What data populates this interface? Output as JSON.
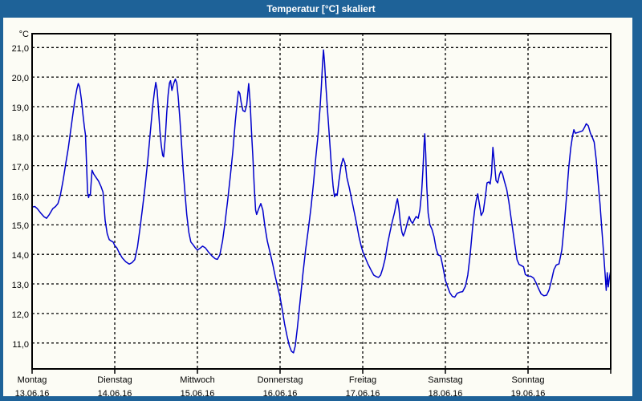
{
  "window": {
    "title": "Temperatur [°C] skaliert",
    "frame_color": "#1E6298",
    "content_background": "#FCFCF5"
  },
  "chart_data": {
    "type": "line",
    "title": "Temperatur [°C] skaliert",
    "ylabel": "°C",
    "xlabel": "",
    "grid": "dashed-black-on-pale-background",
    "legend": "none",
    "y_axis": {
      "max": 21,
      "min": 11,
      "tick_step": 1,
      "tick_labels": [
        "21,0",
        "20,0",
        "19,0",
        "18,0",
        "17,0",
        "16,0",
        "15,0",
        "14,0",
        "13,0",
        "12,0",
        "11,0"
      ]
    },
    "x_axis": {
      "unit": "hours from Monday 00:00",
      "range_hours": [
        0,
        168
      ],
      "days": [
        {
          "weekday": "Montag",
          "date": "13.06.16"
        },
        {
          "weekday": "Dienstag",
          "date": "14.06.16"
        },
        {
          "weekday": "Mittwoch",
          "date": "15.06.16"
        },
        {
          "weekday": "Donnerstag",
          "date": "16.06.16"
        },
        {
          "weekday": "Freitag",
          "date": "17.06.16"
        },
        {
          "weekday": "Samstag",
          "date": "18.06.16"
        },
        {
          "weekday": "Sonntag",
          "date": "19.06.16"
        }
      ]
    },
    "series": [
      {
        "name": "Temperatur",
        "color": "#0000CC",
        "points": [
          [
            0,
            15.6
          ],
          [
            0.8,
            15.62
          ],
          [
            1.5,
            15.55
          ],
          [
            2.5,
            15.4
          ],
          [
            3.5,
            15.27
          ],
          [
            4.2,
            15.22
          ],
          [
            5,
            15.35
          ],
          [
            6,
            15.55
          ],
          [
            6.8,
            15.62
          ],
          [
            7.5,
            15.72
          ],
          [
            8.2,
            16.0
          ],
          [
            9,
            16.5
          ],
          [
            9.8,
            17.1
          ],
          [
            10.5,
            17.6
          ],
          [
            11.2,
            18.2
          ],
          [
            11.8,
            18.7
          ],
          [
            12.4,
            19.2
          ],
          [
            13,
            19.6
          ],
          [
            13.4,
            19.78
          ],
          [
            13.8,
            19.68
          ],
          [
            14.3,
            19.25
          ],
          [
            14.8,
            18.7
          ],
          [
            15.2,
            18.3
          ],
          [
            15.5,
            18.05
          ],
          [
            15.8,
            17.1
          ],
          [
            16.1,
            16.1
          ],
          [
            16.4,
            15.92
          ],
          [
            16.6,
            16.02
          ],
          [
            16.9,
            16.0
          ],
          [
            17.4,
            16.85
          ],
          [
            17.9,
            16.72
          ],
          [
            18.6,
            16.6
          ],
          [
            19.3,
            16.48
          ],
          [
            20,
            16.3
          ],
          [
            20.6,
            16.1
          ],
          [
            21.2,
            15.15
          ],
          [
            21.8,
            14.7
          ],
          [
            22.4,
            14.5
          ],
          [
            23,
            14.45
          ],
          [
            23.5,
            14.42
          ],
          [
            24,
            14.3
          ],
          [
            24.6,
            14.22
          ],
          [
            25.3,
            14.05
          ],
          [
            26.2,
            13.88
          ],
          [
            27.2,
            13.75
          ],
          [
            28.2,
            13.67
          ],
          [
            29,
            13.72
          ],
          [
            29.8,
            13.82
          ],
          [
            30.6,
            14.25
          ],
          [
            31.3,
            14.85
          ],
          [
            32,
            15.5
          ],
          [
            32.8,
            16.3
          ],
          [
            33.6,
            17.2
          ],
          [
            34.3,
            18.1
          ],
          [
            35,
            19.0
          ],
          [
            35.5,
            19.5
          ],
          [
            35.9,
            19.82
          ],
          [
            36.3,
            19.55
          ],
          [
            36.7,
            18.9
          ],
          [
            37.1,
            18.2
          ],
          [
            37.5,
            17.7
          ],
          [
            37.9,
            17.35
          ],
          [
            38.2,
            17.3
          ],
          [
            38.7,
            18.0
          ],
          [
            39.1,
            18.8
          ],
          [
            39.5,
            19.4
          ],
          [
            39.9,
            19.8
          ],
          [
            40.2,
            19.88
          ],
          [
            40.6,
            19.55
          ],
          [
            41.1,
            19.78
          ],
          [
            41.6,
            19.93
          ],
          [
            42,
            19.8
          ],
          [
            42.4,
            19.35
          ],
          [
            42.9,
            18.6
          ],
          [
            43.4,
            17.7
          ],
          [
            43.9,
            16.8
          ],
          [
            44.4,
            16.05
          ],
          [
            44.9,
            15.35
          ],
          [
            45.5,
            14.75
          ],
          [
            46.1,
            14.42
          ],
          [
            46.8,
            14.32
          ],
          [
            47.4,
            14.22
          ],
          [
            48,
            14.15
          ],
          [
            48.7,
            14.2
          ],
          [
            49.5,
            14.28
          ],
          [
            50.3,
            14.22
          ],
          [
            51.2,
            14.08
          ],
          [
            52.2,
            13.95
          ],
          [
            53.2,
            13.85
          ],
          [
            53.8,
            13.83
          ],
          [
            54.5,
            13.98
          ],
          [
            55.3,
            14.45
          ],
          [
            56,
            15.05
          ],
          [
            56.8,
            15.85
          ],
          [
            57.6,
            16.7
          ],
          [
            58.3,
            17.5
          ],
          [
            59,
            18.5
          ],
          [
            59.5,
            19.1
          ],
          [
            59.9,
            19.52
          ],
          [
            60.3,
            19.45
          ],
          [
            60.7,
            19.15
          ],
          [
            61.2,
            18.87
          ],
          [
            61.8,
            18.83
          ],
          [
            62.3,
            19.05
          ],
          [
            62.9,
            19.78
          ],
          [
            63.3,
            19.15
          ],
          [
            63.7,
            18.15
          ],
          [
            64.1,
            17.3
          ],
          [
            64.5,
            16.3
          ],
          [
            64.9,
            15.5
          ],
          [
            65.2,
            15.35
          ],
          [
            65.8,
            15.55
          ],
          [
            66.4,
            15.72
          ],
          [
            67,
            15.5
          ],
          [
            67.6,
            14.95
          ],
          [
            68.3,
            14.45
          ],
          [
            69.1,
            14.05
          ],
          [
            69.9,
            13.65
          ],
          [
            70.6,
            13.25
          ],
          [
            71.3,
            12.9
          ],
          [
            72,
            12.55
          ],
          [
            72.6,
            12.15
          ],
          [
            73.3,
            11.65
          ],
          [
            74,
            11.25
          ],
          [
            74.7,
            10.9
          ],
          [
            75.3,
            10.72
          ],
          [
            75.9,
            10.67
          ],
          [
            76.4,
            10.9
          ],
          [
            77,
            11.5
          ],
          [
            77.8,
            12.4
          ],
          [
            78.6,
            13.3
          ],
          [
            79.4,
            14.15
          ],
          [
            80.2,
            14.85
          ],
          [
            81,
            15.6
          ],
          [
            81.7,
            16.4
          ],
          [
            82.4,
            17.3
          ],
          [
            83,
            18.0
          ],
          [
            83.6,
            18.95
          ],
          [
            84,
            19.7
          ],
          [
            84.3,
            20.4
          ],
          [
            84.6,
            20.92
          ],
          [
            84.9,
            20.5
          ],
          [
            85.3,
            19.7
          ],
          [
            85.8,
            18.85
          ],
          [
            86.3,
            18.0
          ],
          [
            86.9,
            17.0
          ],
          [
            87.4,
            16.3
          ],
          [
            87.8,
            15.95
          ],
          [
            88.2,
            16.05
          ],
          [
            88.6,
            16.0
          ],
          [
            89.1,
            16.5
          ],
          [
            89.7,
            17.0
          ],
          [
            90.3,
            17.25
          ],
          [
            90.8,
            17.1
          ],
          [
            91.4,
            16.6
          ],
          [
            92.1,
            16.25
          ],
          [
            92.8,
            15.85
          ],
          [
            93.5,
            15.45
          ],
          [
            94.2,
            15.05
          ],
          [
            94.9,
            14.6
          ],
          [
            95.5,
            14.3
          ],
          [
            96,
            14.1
          ],
          [
            96.7,
            13.9
          ],
          [
            97.5,
            13.68
          ],
          [
            98.4,
            13.47
          ],
          [
            99.2,
            13.3
          ],
          [
            99.9,
            13.25
          ],
          [
            100.6,
            13.22
          ],
          [
            101.2,
            13.3
          ],
          [
            101.8,
            13.52
          ],
          [
            102.5,
            13.85
          ],
          [
            103.2,
            14.35
          ],
          [
            103.9,
            14.75
          ],
          [
            104.6,
            15.12
          ],
          [
            105.2,
            15.4
          ],
          [
            105.7,
            15.7
          ],
          [
            106.1,
            15.88
          ],
          [
            106.5,
            15.55
          ],
          [
            106.9,
            15.1
          ],
          [
            107.4,
            14.75
          ],
          [
            107.8,
            14.62
          ],
          [
            108.3,
            14.78
          ],
          [
            108.9,
            15.05
          ],
          [
            109.5,
            15.28
          ],
          [
            110,
            15.12
          ],
          [
            110.5,
            15.05
          ],
          [
            111,
            15.18
          ],
          [
            111.5,
            15.28
          ],
          [
            112.1,
            15.22
          ],
          [
            112.6,
            15.5
          ],
          [
            113.1,
            16.1
          ],
          [
            113.5,
            16.9
          ],
          [
            113.8,
            17.7
          ],
          [
            114,
            18.08
          ],
          [
            114.3,
            17.4
          ],
          [
            114.6,
            16.3
          ],
          [
            115,
            15.4
          ],
          [
            115.5,
            15.0
          ],
          [
            116.1,
            14.85
          ],
          [
            116.7,
            14.6
          ],
          [
            117.3,
            14.2
          ],
          [
            117.9,
            13.98
          ],
          [
            118.6,
            13.95
          ],
          [
            119.2,
            13.62
          ],
          [
            119.7,
            13.32
          ],
          [
            120,
            13.12
          ],
          [
            120.6,
            12.92
          ],
          [
            121.3,
            12.7
          ],
          [
            122,
            12.58
          ],
          [
            122.7,
            12.55
          ],
          [
            123.4,
            12.68
          ],
          [
            124.2,
            12.72
          ],
          [
            125,
            12.74
          ],
          [
            125.8,
            12.92
          ],
          [
            126.5,
            13.3
          ],
          [
            127.2,
            14.0
          ],
          [
            127.9,
            14.9
          ],
          [
            128.5,
            15.5
          ],
          [
            129,
            15.85
          ],
          [
            129.4,
            16.05
          ],
          [
            129.9,
            15.68
          ],
          [
            130.4,
            15.32
          ],
          [
            131,
            15.45
          ],
          [
            131.6,
            15.95
          ],
          [
            132.1,
            16.42
          ],
          [
            132.6,
            16.45
          ],
          [
            133,
            16.38
          ],
          [
            133.4,
            16.75
          ],
          [
            133.8,
            17.62
          ],
          [
            134.2,
            17.15
          ],
          [
            134.7,
            16.5
          ],
          [
            135.2,
            16.42
          ],
          [
            135.7,
            16.7
          ],
          [
            136.1,
            16.82
          ],
          [
            136.6,
            16.72
          ],
          [
            137.2,
            16.45
          ],
          [
            137.8,
            16.2
          ],
          [
            138.4,
            15.8
          ],
          [
            139,
            15.3
          ],
          [
            139.6,
            14.8
          ],
          [
            140.2,
            14.3
          ],
          [
            140.8,
            13.82
          ],
          [
            141.4,
            13.66
          ],
          [
            142.1,
            13.62
          ],
          [
            142.7,
            13.58
          ],
          [
            143.2,
            13.32
          ],
          [
            144,
            13.26
          ],
          [
            144.8,
            13.26
          ],
          [
            145.6,
            13.2
          ],
          [
            146.3,
            13.04
          ],
          [
            147,
            12.85
          ],
          [
            147.8,
            12.66
          ],
          [
            148.6,
            12.6
          ],
          [
            149.4,
            12.62
          ],
          [
            150.1,
            12.8
          ],
          [
            150.8,
            13.12
          ],
          [
            151.5,
            13.48
          ],
          [
            152.2,
            13.64
          ],
          [
            153,
            13.68
          ],
          [
            153.8,
            14.15
          ],
          [
            154.5,
            15.0
          ],
          [
            155.2,
            16.0
          ],
          [
            155.8,
            16.9
          ],
          [
            156.4,
            17.6
          ],
          [
            156.9,
            18.0
          ],
          [
            157.3,
            18.22
          ],
          [
            157.7,
            18.1
          ],
          [
            158.3,
            18.12
          ],
          [
            159,
            18.15
          ],
          [
            159.8,
            18.18
          ],
          [
            160.4,
            18.3
          ],
          [
            160.9,
            18.42
          ],
          [
            161.5,
            18.35
          ],
          [
            162.1,
            18.1
          ],
          [
            162.7,
            17.95
          ],
          [
            163.2,
            17.8
          ],
          [
            163.8,
            17.2
          ],
          [
            164.3,
            16.5
          ],
          [
            164.9,
            15.7
          ],
          [
            165.4,
            14.9
          ],
          [
            165.9,
            14.1
          ],
          [
            166.4,
            13.3
          ],
          [
            166.7,
            12.78
          ],
          [
            167,
            13.38
          ],
          [
            167.3,
            12.9
          ],
          [
            167.6,
            13.2
          ],
          [
            168,
            13.45
          ]
        ]
      }
    ]
  }
}
